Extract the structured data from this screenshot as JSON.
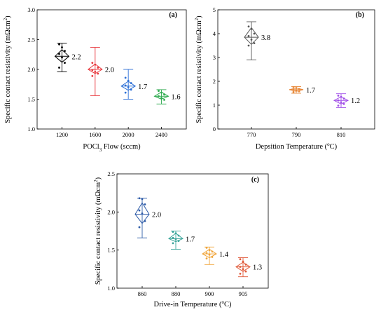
{
  "chart_data": [
    {
      "type": "box",
      "panel": "(a)",
      "xlabel": "POCl",
      "xlabel_sub": "3",
      "xlabel_rest": " Flow (sccm)",
      "ylabel_main": "Specific contact resistivity (mΩcm",
      "ylabel_sup": "2",
      "ylabel_end": ")",
      "ylim": [
        1.0,
        3.0
      ],
      "yticks": [
        "1.0",
        "1.5",
        "2.0",
        "2.5",
        "3.0"
      ],
      "categories": [
        "1200",
        "1600",
        "2000",
        "2400"
      ],
      "series": [
        {
          "category": "1200",
          "color": "#000000",
          "mean_label": "2.2",
          "min": 1.96,
          "q1": 2.12,
          "median": 2.22,
          "q3": 2.33,
          "max": 2.44,
          "mean": 2.22,
          "points": [
            2.42,
            2.37,
            2.31,
            2.26,
            2.2,
            2.11,
            2.03
          ]
        },
        {
          "category": "1600",
          "color": "#e8383d",
          "mean_label": "2.0",
          "min": 1.56,
          "q1": 1.93,
          "median": 2.0,
          "q3": 2.09,
          "max": 2.37,
          "mean": 2.0,
          "points": [
            2.11,
            2.08,
            2.03,
            1.99,
            1.96,
            1.93,
            1.89
          ]
        },
        {
          "category": "2000",
          "color": "#2c6fd6",
          "mean_label": "1.7",
          "min": 1.5,
          "q1": 1.65,
          "median": 1.72,
          "q3": 1.8,
          "max": 2.0,
          "mean": 1.72,
          "points": [
            1.86,
            1.81,
            1.77,
            1.73,
            1.7,
            1.66,
            1.61
          ]
        },
        {
          "category": "2400",
          "color": "#2eaa4f",
          "mean_label": "1.6",
          "min": 1.42,
          "q1": 1.5,
          "median": 1.55,
          "q3": 1.62,
          "max": 1.66,
          "mean": 1.55,
          "points": [
            1.64,
            1.61,
            1.58,
            1.55,
            1.52,
            1.49
          ]
        }
      ]
    },
    {
      "type": "box",
      "panel": "(b)",
      "xlabel": "Depsition Temperature (",
      "xlabel_sup": "o",
      "xlabel_rest": "C)",
      "ylabel_main": "Specific contact resistivity (mΩcm",
      "ylabel_sup": "2",
      "ylabel_end": ")",
      "ylim": [
        0,
        5
      ],
      "yticks": [
        "0",
        "1",
        "2",
        "3",
        "4",
        "5"
      ],
      "categories": [
        "770",
        "790",
        "810"
      ],
      "series": [
        {
          "category": "770",
          "color": "#555555",
          "mean_label": "3.8",
          "min": 2.9,
          "q1": 3.55,
          "median": 3.85,
          "q3": 4.25,
          "max": 4.5,
          "mean": 3.85,
          "points": [
            4.3,
            4.2,
            4.0,
            3.9,
            3.75,
            3.6,
            3.5
          ]
        },
        {
          "category": "790",
          "color": "#e8893a",
          "mean_label": "1.7",
          "min": 1.5,
          "q1": 1.58,
          "median": 1.65,
          "q3": 1.72,
          "max": 1.78,
          "mean": 1.65,
          "points": [
            1.76,
            1.72,
            1.68,
            1.65,
            1.62,
            1.58,
            1.55
          ]
        },
        {
          "category": "810",
          "color": "#a14fe8",
          "mean_label": "1.2",
          "min": 0.9,
          "q1": 1.05,
          "median": 1.2,
          "q3": 1.35,
          "max": 1.48,
          "mean": 1.2,
          "points": [
            1.4,
            1.35,
            1.28,
            1.2,
            1.12,
            1.05,
            0.98
          ]
        }
      ]
    },
    {
      "type": "box",
      "panel": "(c)",
      "xlabel": "Drive-in Temperature (",
      "xlabel_sup": "o",
      "xlabel_rest": "C)",
      "ylabel_main": "Specific contact resistivity (mΩcm",
      "ylabel_sup": "2",
      "ylabel_end": ")",
      "ylim": [
        1.0,
        2.5
      ],
      "yticks": [
        "1.0",
        "1.5",
        "2.0",
        "2.5"
      ],
      "categories": [
        "860",
        "880",
        "900",
        "905"
      ],
      "series": [
        {
          "category": "860",
          "color": "#2e5ca8",
          "mean_label": "2.0",
          "min": 1.66,
          "q1": 1.85,
          "median": 1.97,
          "q3": 2.12,
          "max": 2.18,
          "mean": 1.97,
          "points": [
            2.18,
            2.17,
            2.1,
            2.02,
            1.98,
            1.88,
            1.8
          ]
        },
        {
          "category": "880",
          "color": "#3aa59a",
          "mean_label": "1.7",
          "min": 1.51,
          "q1": 1.61,
          "median": 1.65,
          "q3": 1.72,
          "max": 1.75,
          "mean": 1.65,
          "points": [
            1.74,
            1.72,
            1.69,
            1.66,
            1.64,
            1.62,
            1.59
          ]
        },
        {
          "category": "900",
          "color": "#f0a53a",
          "mean_label": "1.4",
          "min": 1.31,
          "q1": 1.4,
          "median": 1.45,
          "q3": 1.51,
          "max": 1.54,
          "mean": 1.45,
          "points": [
            1.53,
            1.5,
            1.48,
            1.46,
            1.44,
            1.41,
            1.39
          ]
        },
        {
          "category": "905",
          "color": "#e05a3a",
          "mean_label": "1.3",
          "min": 1.15,
          "q1": 1.22,
          "median": 1.28,
          "q3": 1.34,
          "max": 1.4,
          "mean": 1.28,
          "points": [
            1.38,
            1.35,
            1.31,
            1.28,
            1.25,
            1.22,
            1.19
          ]
        }
      ]
    }
  ]
}
